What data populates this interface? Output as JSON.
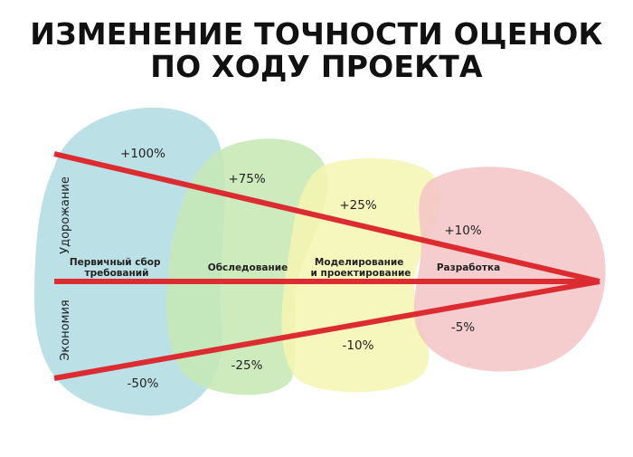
{
  "title_line1": "ИЗМЕНЕНИЕ ТОЧНОСТИ ОЦЕНОК",
  "title_line2": "ПО ХОДУ ПРОЕКТА",
  "axis_labels": {
    "upper": "Удорожание",
    "lower": "Экономия"
  },
  "phases": [
    {
      "line1": "Первичный сбор",
      "line2": "требований",
      "color": "#b7dfe6",
      "upper": "+100%",
      "lower": "-50%"
    },
    {
      "line1": "Обследование",
      "line2": "",
      "color": "#c6e7b3",
      "upper": "+75%",
      "lower": "-25%"
    },
    {
      "line1": "Моделирование",
      "line2": "и проектирование",
      "color": "#f4f6b0",
      "upper": "+25%",
      "lower": "-10%"
    },
    {
      "line1": "Разработка",
      "line2": "",
      "color": "#f3c4c7",
      "upper": "+10%",
      "lower": "-5%"
    }
  ],
  "line_color": "#dd2b32"
}
